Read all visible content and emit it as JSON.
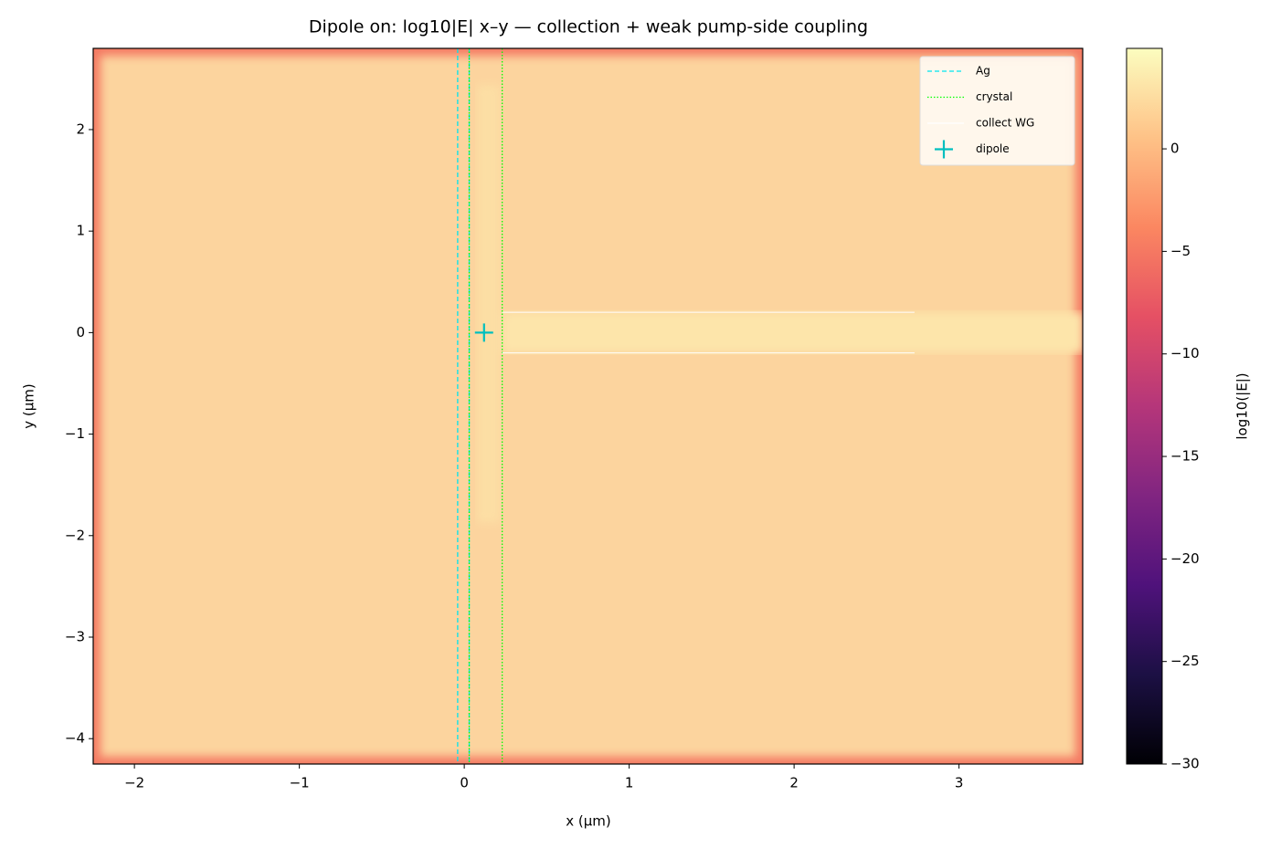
{
  "chart_data": {
    "type": "heatmap",
    "title": "Dipole on: log10|E| x–y — collection + weak pump-side coupling",
    "x_label": "x (µm)",
    "y_label": "y (µm)",
    "xlim": [
      -2.25,
      3.75
    ],
    "ylim": [
      -4.25,
      2.8
    ],
    "xticks": [
      {
        "value": -2,
        "label": "−2"
      },
      {
        "value": -1,
        "label": "−1"
      },
      0,
      1,
      2,
      3
    ],
    "yticks": [
      {
        "value": -4,
        "label": "−4"
      },
      {
        "value": -3,
        "label": "−3"
      },
      {
        "value": -2,
        "label": "−2"
      },
      {
        "value": -1,
        "label": "−1"
      },
      0,
      1,
      2
    ],
    "colormap": "magma",
    "colorbar": {
      "label": "log10(|E|)",
      "lim": [
        -30,
        4.9
      ],
      "ticks": [
        {
          "value": -30,
          "label": "−30"
        },
        {
          "value": -25,
          "label": "−25"
        },
        {
          "value": -20,
          "label": "−20"
        },
        {
          "value": -15,
          "label": "−15"
        },
        {
          "value": -10,
          "label": "−10"
        },
        {
          "value": -5,
          "label": "−5"
        },
        0
      ]
    },
    "legend": "upper right",
    "series": [
      {
        "name": "Ag",
        "color": "#00e5ee",
        "style": "dashed",
        "kind": "vline",
        "x": [
          -0.04,
          0.03
        ]
      },
      {
        "name": "crystal",
        "color": "#00ff00",
        "style": "dotted",
        "kind": "vline",
        "x": [
          0.03,
          0.23
        ]
      },
      {
        "name": "collect WG",
        "color": "#ffffff",
        "style": "solid",
        "kind": "hline",
        "y": [
          0.2,
          -0.2
        ],
        "xrange": [
          0.23,
          2.73
        ]
      },
      {
        "name": "dipole",
        "color": "#00bfbf",
        "style": "solid",
        "kind": "marker",
        "x": [
          0.12
        ],
        "y": [
          0
        ]
      }
    ]
  }
}
